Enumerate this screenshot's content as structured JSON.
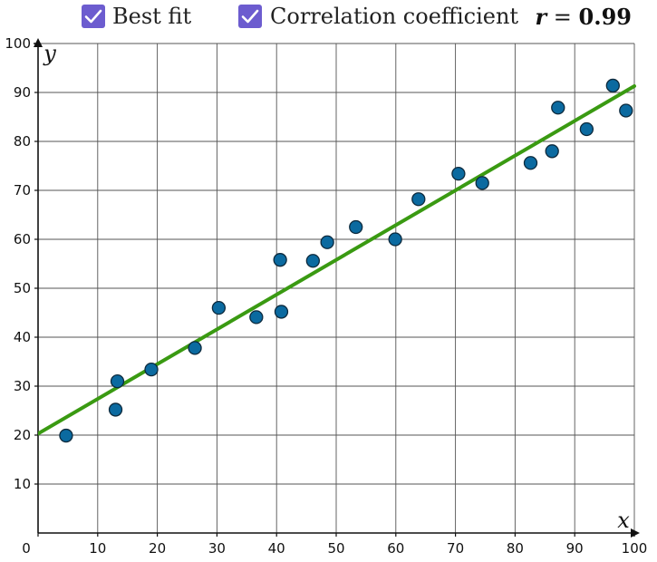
{
  "controls": {
    "best_fit_label": "Best fit",
    "best_fit_checked": true,
    "correlation_label": "Correlation coefficient",
    "correlation_checked": true,
    "r_symbol": "r",
    "r_equals": " = ",
    "r_value": "0.99"
  },
  "colors": {
    "checkbox": "#6c5ccf",
    "point_fill": "#0b6aa0",
    "point_stroke": "#0d2a3d",
    "fit_line": "#3a9a12",
    "grid": "#555555"
  },
  "chart_data": {
    "type": "scatter",
    "xlabel": "x",
    "ylabel": "y",
    "xlim": [
      0,
      100
    ],
    "ylim": [
      0,
      100
    ],
    "grid": true,
    "x_ticks": [
      0,
      10,
      20,
      30,
      40,
      50,
      60,
      70,
      80,
      90,
      100
    ],
    "y_ticks": [
      10,
      20,
      30,
      40,
      50,
      60,
      70,
      80,
      90,
      100
    ],
    "points": [
      {
        "x": 4.7,
        "y": 19.9
      },
      {
        "x": 13.0,
        "y": 25.2
      },
      {
        "x": 13.3,
        "y": 31.0
      },
      {
        "x": 19.0,
        "y": 33.4
      },
      {
        "x": 26.3,
        "y": 37.8
      },
      {
        "x": 30.3,
        "y": 46.0
      },
      {
        "x": 36.6,
        "y": 44.1
      },
      {
        "x": 40.6,
        "y": 55.8
      },
      {
        "x": 40.8,
        "y": 45.2
      },
      {
        "x": 46.1,
        "y": 55.6
      },
      {
        "x": 48.5,
        "y": 59.4
      },
      {
        "x": 53.3,
        "y": 62.5
      },
      {
        "x": 59.9,
        "y": 60.0
      },
      {
        "x": 63.8,
        "y": 68.2
      },
      {
        "x": 70.5,
        "y": 73.4
      },
      {
        "x": 74.5,
        "y": 71.5
      },
      {
        "x": 82.6,
        "y": 75.6
      },
      {
        "x": 86.2,
        "y": 78.0
      },
      {
        "x": 87.2,
        "y": 86.9
      },
      {
        "x": 92.0,
        "y": 82.5
      },
      {
        "x": 96.4,
        "y": 91.4
      },
      {
        "x": 98.6,
        "y": 86.3
      }
    ],
    "best_fit": {
      "slope": 0.71,
      "intercept": 20.3
    }
  }
}
